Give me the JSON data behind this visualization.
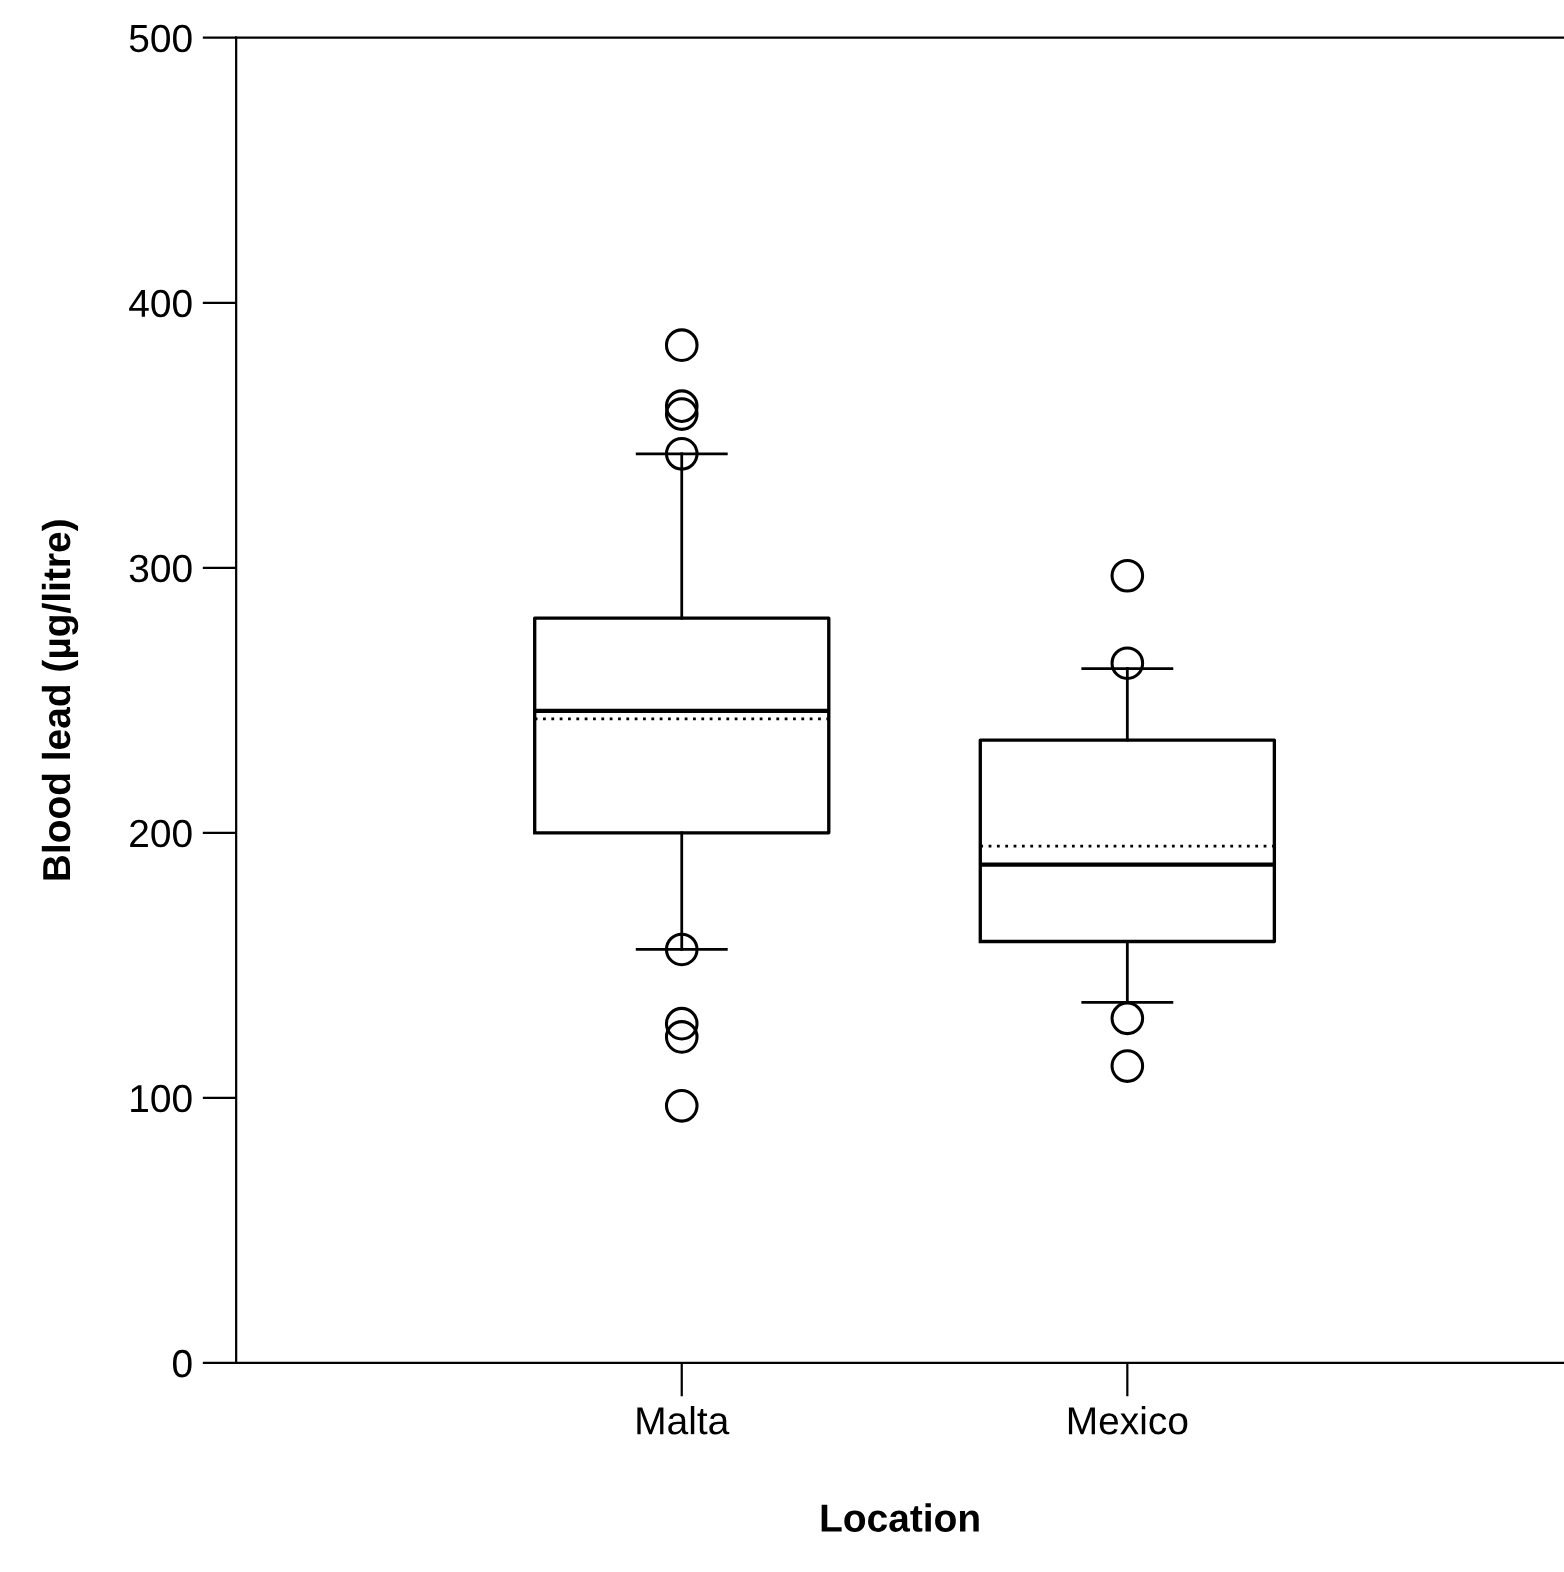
{
  "chart_data": {
    "type": "box",
    "xlabel": "Location",
    "ylabel": "Blood lead (µg/litre)",
    "categories": [
      "Malta",
      "Mexico"
    ],
    "boxes": [
      {
        "low": 156,
        "q1": 200,
        "median": 246,
        "q3": 281,
        "high": 343,
        "mean": 243,
        "outliers": [
          384,
          361,
          358,
          343,
          156,
          128,
          123,
          97
        ]
      },
      {
        "low": 136,
        "q1": 159,
        "median": 188,
        "q3": 235,
        "high": 262,
        "mean": 195,
        "outliers": [
          297,
          264,
          130,
          112
        ]
      }
    ],
    "ylim": [
      0,
      500
    ],
    "yticks": [
      0,
      100,
      200,
      300,
      400,
      500
    ],
    "grid": false,
    "marker": "circle"
  }
}
